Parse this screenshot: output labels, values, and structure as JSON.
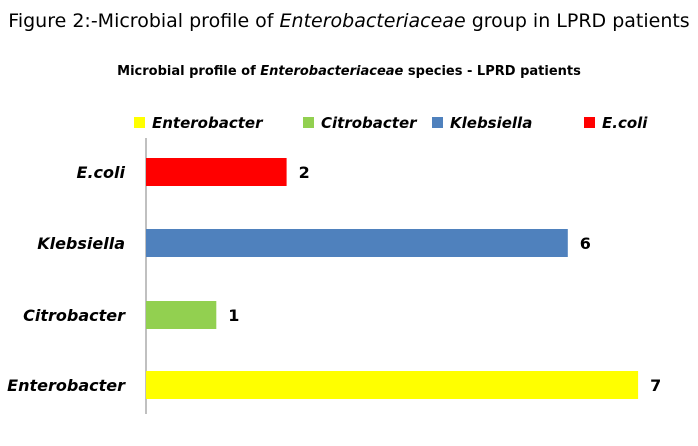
{
  "figure": {
    "caption_prefix": "Figure 2:-Microbial profile of ",
    "caption_italic": "Enterobacteriaceae",
    "caption_suffix": " group in LPRD patients"
  },
  "chart_data": {
    "type": "bar",
    "orientation": "horizontal",
    "title_prefix": "Microbial profile of ",
    "title_italic": "Enterobacteriaceae",
    "title_suffix": " species - LPRD patients",
    "categories": [
      "Enterobacter",
      "Citrobacter",
      "Klebsiella",
      "E.coli"
    ],
    "values": [
      7,
      1,
      6,
      2
    ],
    "colors": [
      "#ffff00",
      "#92d050",
      "#4f81bd",
      "#ff0000"
    ],
    "legend": [
      "Enterobacter",
      "Citrobacter",
      "Klebsiella",
      "E.coli"
    ],
    "legend_position": "top",
    "xlim": [
      0,
      7
    ],
    "grid": false,
    "data_labels": true
  }
}
